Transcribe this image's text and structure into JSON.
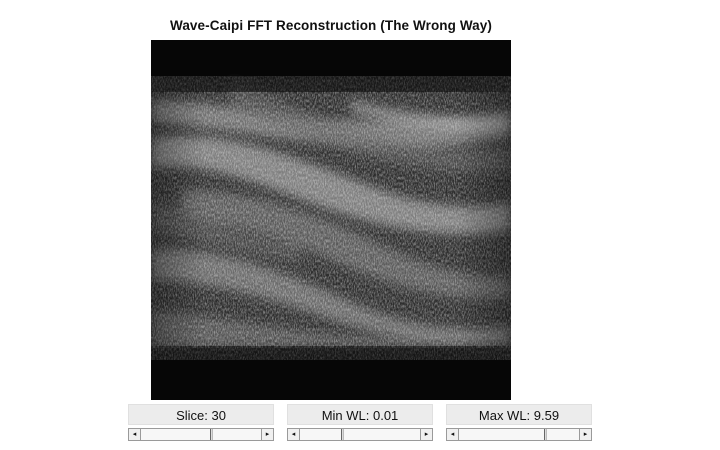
{
  "figure": {
    "title": "Wave-Caipi FFT Reconstruction (The Wrong Way)"
  },
  "controls": [
    {
      "id": "slice",
      "label": "Slice: 30",
      "position": 0.58
    },
    {
      "id": "min-wl",
      "label": "Min WL: 0.01",
      "position": 0.35
    },
    {
      "id": "max-wl",
      "label": "Max WL: 9.59",
      "position": 0.72
    }
  ],
  "slider_arrows": {
    "left": "◂",
    "right": "▸"
  },
  "icons": {
    "left_arrow": "left-arrow-icon",
    "right_arrow": "right-arrow-icon"
  },
  "colors": {
    "background": "#ffffff",
    "image_background": "#050505",
    "label_background": "#ececec"
  }
}
